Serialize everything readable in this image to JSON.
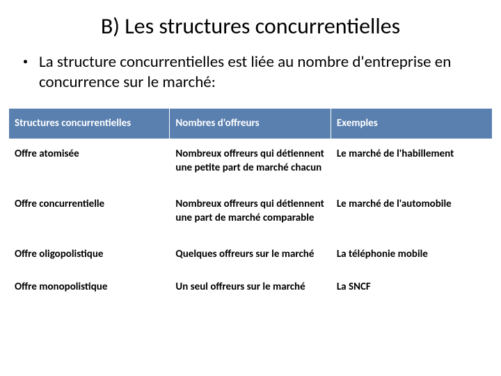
{
  "title": "B) Les structures concurrentielles",
  "bullet": "La structure concurrentielles est liée au nombre d'entreprise en concurrence sur le marché:",
  "table": {
    "header_bg": "#5a80b0",
    "header_fg": "#ffffff",
    "cell_bg": "#ffffff",
    "cell_fg": "#000000",
    "border_color": "#ffffff",
    "columns": [
      "Structures concurrentielles",
      "Nombres  d'offreurs",
      "Exemples"
    ],
    "rows": [
      [
        "Offre atomisée",
        "Nombreux offreurs qui détiennent une petite part de marché chacun",
        "Le marché de l'habillement"
      ],
      [
        "Offre concurrentielle",
        "Nombreux offreurs qui détiennent une part de marché comparable",
        "Le marché de l'automobile"
      ],
      [
        "Offre oligopolistique",
        "Quelques offreurs sur le marché",
        "La téléphonie mobile"
      ],
      [
        "Offre monopolistique",
        "Un seul offreurs sur le marché",
        "La SNCF"
      ]
    ]
  }
}
